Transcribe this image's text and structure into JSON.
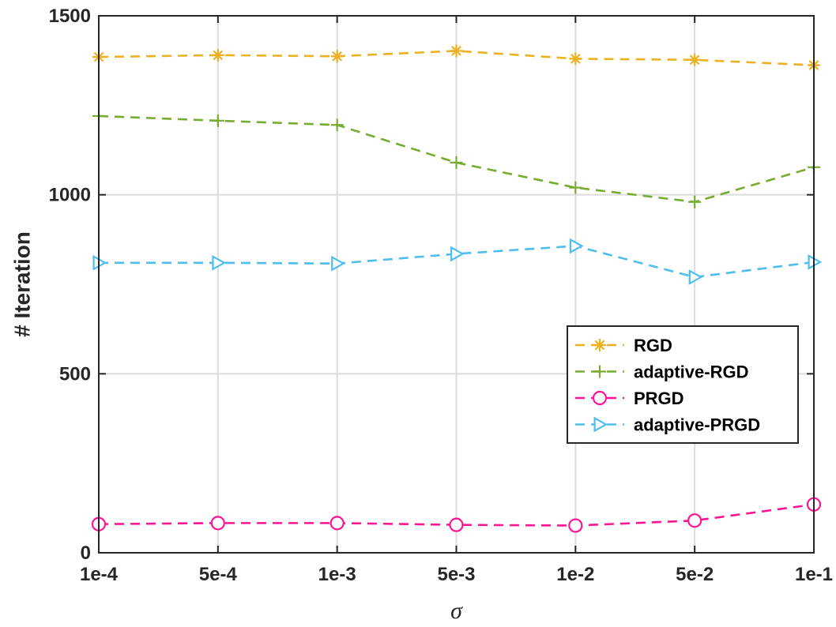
{
  "chart_data": {
    "type": "line",
    "title": "",
    "xlabel": "σ",
    "ylabel": "# Iteration",
    "categories": [
      "1e-4",
      "5e-4",
      "1e-3",
      "5e-3",
      "1e-2",
      "5e-2",
      "1e-1"
    ],
    "ylim": [
      0,
      1500
    ],
    "yticks": [
      0,
      500,
      1000,
      1500
    ],
    "grid": true,
    "legend_position": "center-right",
    "series": [
      {
        "name": "RGD",
        "color": "#EDB120",
        "marker": "asterisk",
        "values": [
          1385,
          1390,
          1387,
          1402,
          1380,
          1377,
          1362
        ]
      },
      {
        "name": "adaptive-RGD",
        "color": "#77AC30",
        "marker": "plus",
        "values": [
          1220,
          1207,
          1195,
          1090,
          1020,
          980,
          1077
        ]
      },
      {
        "name": "PRGD",
        "color": "#FF1493",
        "marker": "circle",
        "values": [
          80,
          83,
          83,
          78,
          76,
          90,
          135
        ]
      },
      {
        "name": "adaptive-PRGD",
        "color": "#4DBEEE",
        "marker": "triangle-right",
        "values": [
          810,
          810,
          808,
          835,
          857,
          770,
          812
        ]
      }
    ]
  }
}
